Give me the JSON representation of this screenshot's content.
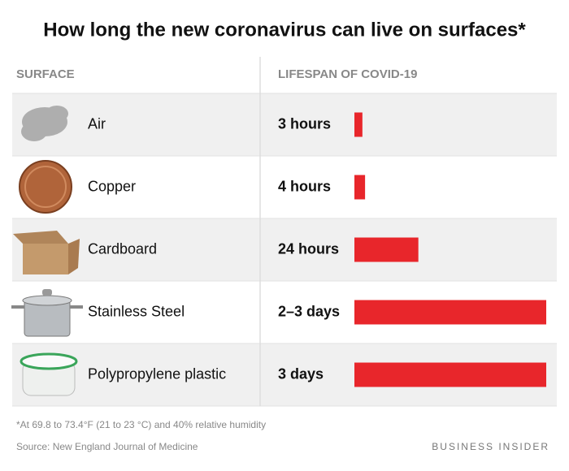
{
  "chart_data": {
    "type": "bar",
    "title": "How long the new coronavirus can live on surfaces*",
    "column_headers": [
      "SURFACE",
      "LIFESPAN OF COVID-19"
    ],
    "categories": [
      "Air",
      "Copper",
      "Cardboard",
      "Stainless Steel",
      "Polypropylene plastic"
    ],
    "values": [
      3,
      4,
      24,
      72,
      72
    ],
    "value_labels": [
      "3 hours",
      "4 hours",
      "24 hours",
      "2–3 days",
      "3 days"
    ],
    "color": "#e8262b",
    "footnote": "*At 69.8 to 73.4°F (21 to 23 °C) and 40% relative humidity",
    "source": "Source: New England Journal of Medicine",
    "brand": "BUSINESS INSIDER"
  }
}
